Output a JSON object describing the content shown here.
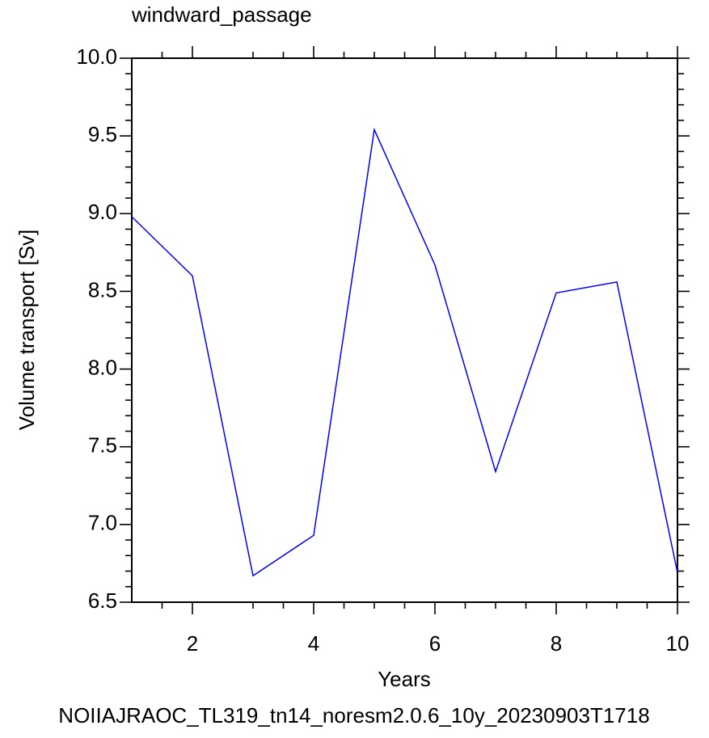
{
  "chart_data": {
    "type": "line",
    "title": "windward_passage",
    "x_label": "Years",
    "y_label": "Volume transport [Sv]",
    "footnote": "NOIIAJRAOC_TL319_tn14_noresm2.0.6_10y_20230903T1718",
    "x": [
      1,
      2,
      3,
      4,
      5,
      6,
      7,
      8,
      9,
      10
    ],
    "series": [
      {
        "color": "#0000ff",
        "values": [
          8.98,
          8.6,
          6.67,
          6.93,
          9.54,
          8.67,
          7.34,
          8.49,
          8.56,
          6.69
        ]
      }
    ],
    "xlim": [
      1,
      10
    ],
    "xticks": [
      2,
      4,
      6,
      8,
      10
    ],
    "xminorticks": [
      1.5,
      3,
      3.5,
      4.5,
      5,
      5.5,
      6.5,
      7,
      7.5,
      8.5,
      9,
      9.5
    ],
    "ylim": [
      6.5,
      10
    ],
    "yticks": [
      {
        "value": 6.5,
        "label": "6.5"
      },
      {
        "value": 7,
        "label": "7.0"
      },
      {
        "value": 7.5,
        "label": "7.5"
      },
      {
        "value": 8,
        "label": "8.0"
      },
      {
        "value": 8.5,
        "label": "8.5"
      },
      {
        "value": 9,
        "label": "9.0"
      },
      {
        "value": 9.5,
        "label": "9.5"
      },
      {
        "value": 10,
        "label": "10.0"
      }
    ],
    "yminorticks": [
      6.6,
      6.7,
      6.8,
      6.9,
      7.1,
      7.2,
      7.3,
      7.4,
      7.6,
      7.7,
      7.8,
      7.9,
      8.1,
      8.2,
      8.3,
      8.4,
      8.6,
      8.7,
      8.8,
      8.9,
      9.1,
      9.2,
      9.3,
      9.4,
      9.6,
      9.7,
      9.8,
      9.9
    ],
    "footnote_color": "#0000ff"
  }
}
